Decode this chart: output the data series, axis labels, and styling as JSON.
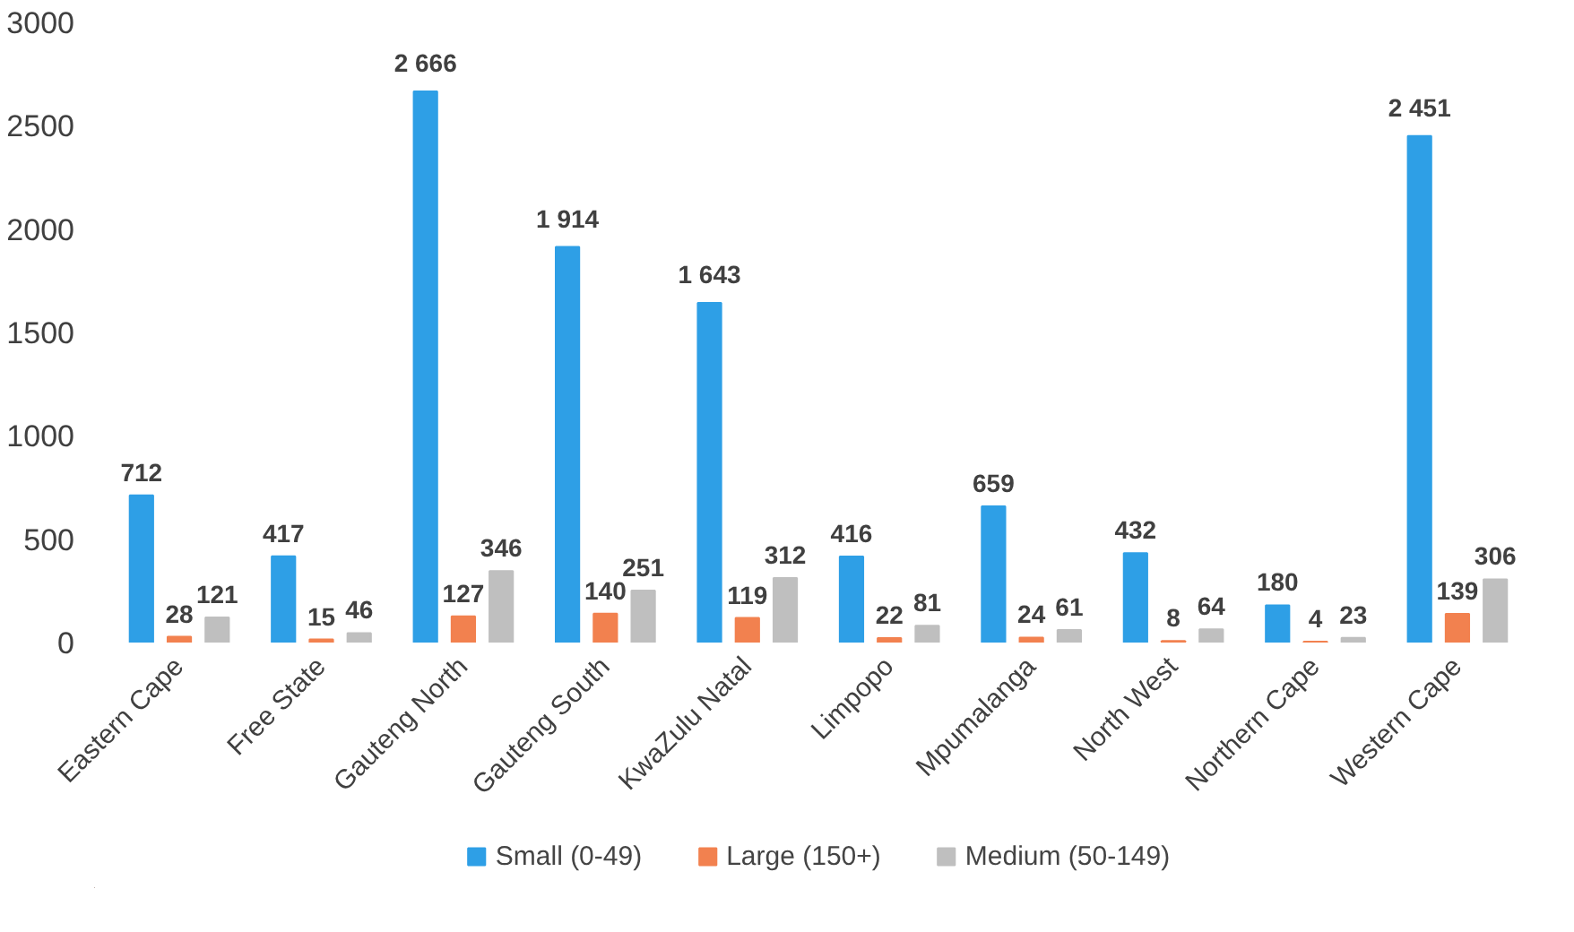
{
  "chart_data": {
    "type": "bar",
    "categories": [
      "Eastern Cape",
      "Free State",
      "Gauteng North",
      "Gauteng South",
      "KwaZulu Natal",
      "Limpopo",
      "Mpumalanga",
      "North West",
      "Northern Cape",
      "Western Cape"
    ],
    "series": [
      {
        "name": "Small (0-49)",
        "color": "#2e9fe6",
        "values": [
          712,
          417,
          2666,
          1914,
          1643,
          416,
          659,
          432,
          180,
          2451
        ],
        "value_labels": [
          "712",
          "417",
          "2 666",
          "1 914",
          "1 643",
          "416",
          "659",
          "432",
          "180",
          "2 451"
        ]
      },
      {
        "name": "Large (150+)",
        "color": "#f2814f",
        "values": [
          28,
          15,
          127,
          140,
          119,
          22,
          24,
          8,
          4,
          139
        ],
        "value_labels": [
          "28",
          "15",
          "127",
          "140",
          "119",
          "22",
          "24",
          "8",
          "4",
          "139"
        ]
      },
      {
        "name": "Medium (50-149)",
        "color": "#bfbfbf",
        "values": [
          121,
          46,
          346,
          251,
          312,
          81,
          61,
          64,
          23,
          306
        ],
        "value_labels": [
          "121",
          "46",
          "346",
          "251",
          "312",
          "81",
          "61",
          "64",
          "23",
          "306"
        ]
      }
    ],
    "ylim": [
      0,
      3000
    ],
    "yticks": [
      0,
      500,
      1000,
      1500,
      2000,
      2500,
      3000
    ],
    "grid": false,
    "legend": "bottom"
  }
}
